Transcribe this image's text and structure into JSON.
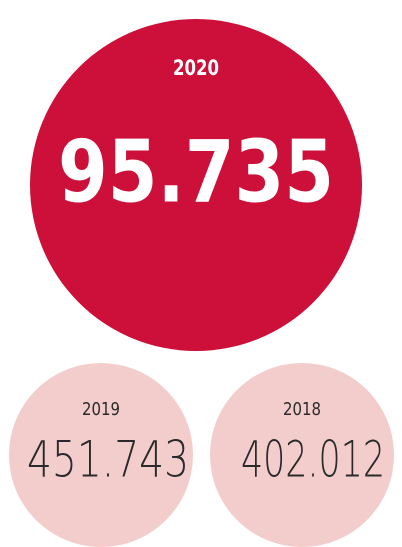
{
  "items": [
    {
      "year": "2020",
      "value": "95.735"
    },
    {
      "year": "2019",
      "value": "451.743"
    },
    {
      "year": "2018",
      "value": "402.012"
    }
  ]
}
